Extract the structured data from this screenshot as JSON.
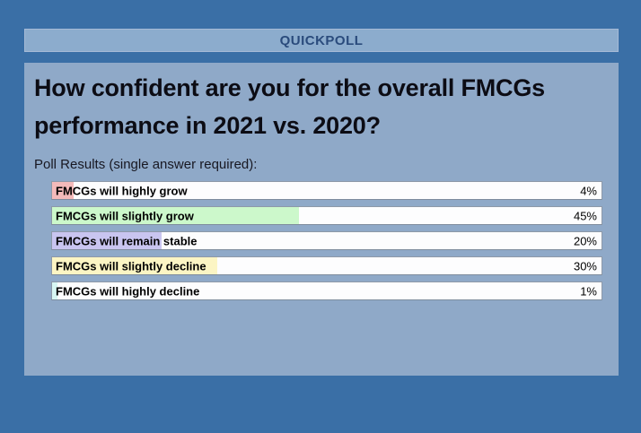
{
  "window": {
    "header_title": "QUICKPOLL"
  },
  "poll": {
    "question": "How confident are you for the overall FMCGs performance in 2021 vs. 2020?",
    "question_lines": [
      "How confident are you for the overall FMCGs",
      "performance in 2021 vs. 2020?"
    ],
    "results_label": "Poll Results (single answer required):",
    "options": [
      {
        "label": "FMCGs will highly grow",
        "percent_text": "4%",
        "value": 4,
        "fill_color": "#f4baba"
      },
      {
        "label": "FMCGs will slightly grow",
        "percent_text": "45%",
        "value": 45,
        "fill_color": "#ccf8cb"
      },
      {
        "label": "FMCGs will remain stable",
        "percent_text": "20%",
        "value": 20,
        "fill_color": "#c9c5f0"
      },
      {
        "label": "FMCGs will slightly decline",
        "percent_text": "30%",
        "value": 30,
        "fill_color": "#fcf5c4"
      },
      {
        "label": "FMCGs will highly decline",
        "percent_text": "1%",
        "value": 1,
        "fill_color": "#d7f6f3"
      }
    ]
  },
  "colors": {
    "background": "#3a6fa6",
    "header_bar": "#8caccd",
    "panel": "#8fa9c8",
    "header_text": "#2a4b7c",
    "bar_background": "#fdfdfe",
    "bar_border": "#8e99a8"
  },
  "chart_data": {
    "type": "bar",
    "orientation": "horizontal",
    "title": "How confident are you for the overall FMCGs performance in 2021 vs. 2020?",
    "subtitle": "Poll Results (single answer required):",
    "categories": [
      "FMCGs will highly grow",
      "FMCGs will slightly grow",
      "FMCGs will remain stable",
      "FMCGs will slightly decline",
      "FMCGs will highly decline"
    ],
    "values": [
      4,
      45,
      20,
      30,
      1
    ],
    "unit": "%",
    "xlim": [
      0,
      100
    ],
    "data_labels": [
      "4%",
      "45%",
      "20%",
      "30%",
      "1%"
    ],
    "grid": false,
    "legend": false
  }
}
